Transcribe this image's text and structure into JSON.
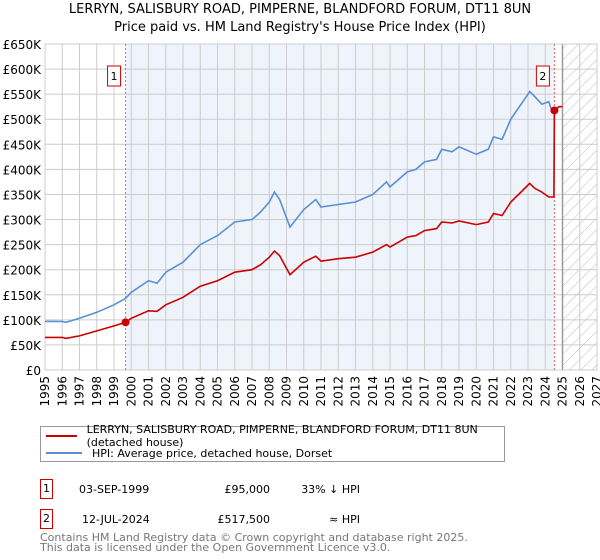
{
  "title": "LERRYN, SALISBURY ROAD, PIMPERNE, BLANDFORD FORUM, DT11 8UN",
  "subtitle": "Price paid vs. HM Land Registry's House Price Index (HPI)",
  "chart_data": {
    "type": "line",
    "title": "LERRYN, SALISBURY ROAD, PIMPERNE, BLANDFORD FORUM, DT11 8UN",
    "subtitle": "Price paid vs. HM Land Registry's House Price Index (HPI)",
    "xlim": [
      1995,
      2027
    ],
    "ylim": [
      0,
      650000
    ],
    "x_ticks": [
      "1995",
      "1996",
      "1997",
      "1998",
      "1999",
      "2000",
      "2001",
      "2002",
      "2003",
      "2004",
      "2005",
      "2006",
      "2007",
      "2008",
      "2009",
      "2010",
      "2011",
      "2012",
      "2013",
      "2014",
      "2015",
      "2016",
      "2017",
      "2018",
      "2019",
      "2020",
      "2021",
      "2022",
      "2023",
      "2024",
      "2025",
      "2026",
      "2027"
    ],
    "y_ticks": [
      {
        "v": 0,
        "label": "£0"
      },
      {
        "v": 50000,
        "label": "£50K"
      },
      {
        "v": 100000,
        "label": "£100K"
      },
      {
        "v": 150000,
        "label": "£150K"
      },
      {
        "v": 200000,
        "label": "£200K"
      },
      {
        "v": 250000,
        "label": "£250K"
      },
      {
        "v": 300000,
        "label": "£300K"
      },
      {
        "v": 350000,
        "label": "£350K"
      },
      {
        "v": 400000,
        "label": "£400K"
      },
      {
        "v": 450000,
        "label": "£450K"
      },
      {
        "v": 500000,
        "label": "£500K"
      },
      {
        "v": 550000,
        "label": "£550K"
      },
      {
        "v": 600000,
        "label": "£600K"
      },
      {
        "v": 650000,
        "label": "£650K"
      }
    ],
    "grid": true,
    "shaded_range": [
      1999.67,
      2024.53
    ],
    "forecast_from": 2025.0,
    "series": [
      {
        "name": "LERRYN, SALISBURY ROAD, PIMPERNE, BLANDFORD FORUM, DT11 8UN (detached house)",
        "color": "#cc0000",
        "x": [
          1995,
          1996,
          1996.2,
          1997,
          1998,
          1999,
          1999.67,
          2000,
          2001,
          2001.5,
          2002,
          2003,
          2004,
          2005,
          2006,
          2007,
          2007.5,
          2008,
          2008.3,
          2008.6,
          2009.2,
          2010,
          2010.7,
          2011,
          2012,
          2013,
          2014,
          2014.8,
          2015,
          2016,
          2016.5,
          2017,
          2017.7,
          2018,
          2018.6,
          2019,
          2020,
          2020.7,
          2021,
          2021.5,
          2022,
          2022.6,
          2023.1,
          2023.4,
          2023.8,
          2024.2,
          2024.5,
          2024.53,
          2024.8,
          2025.0
        ],
        "y": [
          65000,
          65000,
          63000,
          68000,
          78000,
          88000,
          95000,
          103000,
          118000,
          117000,
          130000,
          145000,
          167000,
          178000,
          195000,
          200000,
          210000,
          225000,
          237000,
          228000,
          190000,
          215000,
          227000,
          217000,
          222000,
          225000,
          235000,
          250000,
          245000,
          265000,
          268000,
          278000,
          282000,
          295000,
          293000,
          297000,
          290000,
          295000,
          312000,
          308000,
          335000,
          355000,
          372000,
          362000,
          355000,
          345000,
          345000,
          517500,
          525000,
          525000
        ]
      },
      {
        "name": "HPI: Average price, detached house, Dorset",
        "color": "#5b8fd4",
        "x": [
          1995,
          1996,
          1996.2,
          1997,
          1998,
          1999,
          1999.67,
          2000,
          2001,
          2001.5,
          2002,
          2003,
          2004,
          2005,
          2006,
          2007,
          2007.5,
          2008,
          2008.3,
          2008.6,
          2009.2,
          2010,
          2010.7,
          2011,
          2012,
          2013,
          2014,
          2014.8,
          2015,
          2016,
          2016.5,
          2017,
          2017.7,
          2018,
          2018.6,
          2019,
          2020,
          2020.7,
          2021,
          2021.5,
          2022,
          2022.6,
          2023.1,
          2023.4,
          2023.8,
          2024.2,
          2024.4,
          2024.6
        ],
        "y": [
          97000,
          97000,
          95000,
          103000,
          115000,
          130000,
          143000,
          155000,
          178000,
          173000,
          195000,
          215000,
          250000,
          268000,
          295000,
          300000,
          315000,
          335000,
          355000,
          340000,
          285000,
          320000,
          340000,
          325000,
          330000,
          335000,
          350000,
          375000,
          365000,
          395000,
          400000,
          415000,
          420000,
          440000,
          435000,
          445000,
          430000,
          440000,
          465000,
          460000,
          500000,
          530000,
          555000,
          545000,
          530000,
          535000,
          515000,
          520000
        ]
      }
    ],
    "sales": [
      {
        "label": "1",
        "x": 1999.67,
        "y": 95000
      },
      {
        "label": "2",
        "x": 2024.53,
        "y": 517500
      }
    ]
  },
  "legend": [
    {
      "label": "LERRYN, SALISBURY ROAD, PIMPERNE, BLANDFORD FORUM, DT11 8UN (detached house)",
      "color": "#cc0000"
    },
    {
      "label": "HPI: Average price, detached house, Dorset",
      "color": "#5b8fd4"
    }
  ],
  "transactions": [
    {
      "num": "1",
      "date": "03-SEP-1999",
      "price": "£95,000",
      "hpi": "33% ↓ HPI"
    },
    {
      "num": "2",
      "date": "12-JUL-2024",
      "price": "£517,500",
      "hpi": "≈ HPI"
    }
  ],
  "footer": [
    "Contains HM Land Registry data © Crown copyright and database right 2025.",
    "This data is licensed under the Open Government Licence v3.0."
  ]
}
